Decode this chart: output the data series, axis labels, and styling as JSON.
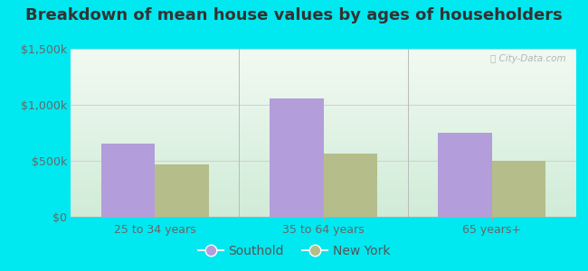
{
  "title": "Breakdown of mean house values by ages of householders",
  "categories": [
    "25 to 34 years",
    "35 to 64 years",
    "65 years+"
  ],
  "southold_values": [
    650000,
    1060000,
    750000
  ],
  "newyork_values": [
    470000,
    565000,
    500000
  ],
  "southold_color": "#b39ddb",
  "newyork_color": "#b5be8a",
  "ylim": [
    0,
    1500000
  ],
  "yticks": [
    0,
    500000,
    1000000,
    1500000
  ],
  "ytick_labels": [
    "$0",
    "$500k",
    "$1,000k",
    "$1,500k"
  ],
  "background_color": "#00e8f0",
  "grad_top": "#e8f8ee",
  "grad_bottom": "#f5fdf8",
  "bar_width": 0.32,
  "legend_labels": [
    "Southold",
    "New York"
  ],
  "watermark": "ⓘ City-Data.com",
  "title_fontsize": 13,
  "tick_fontsize": 9,
  "legend_fontsize": 10
}
